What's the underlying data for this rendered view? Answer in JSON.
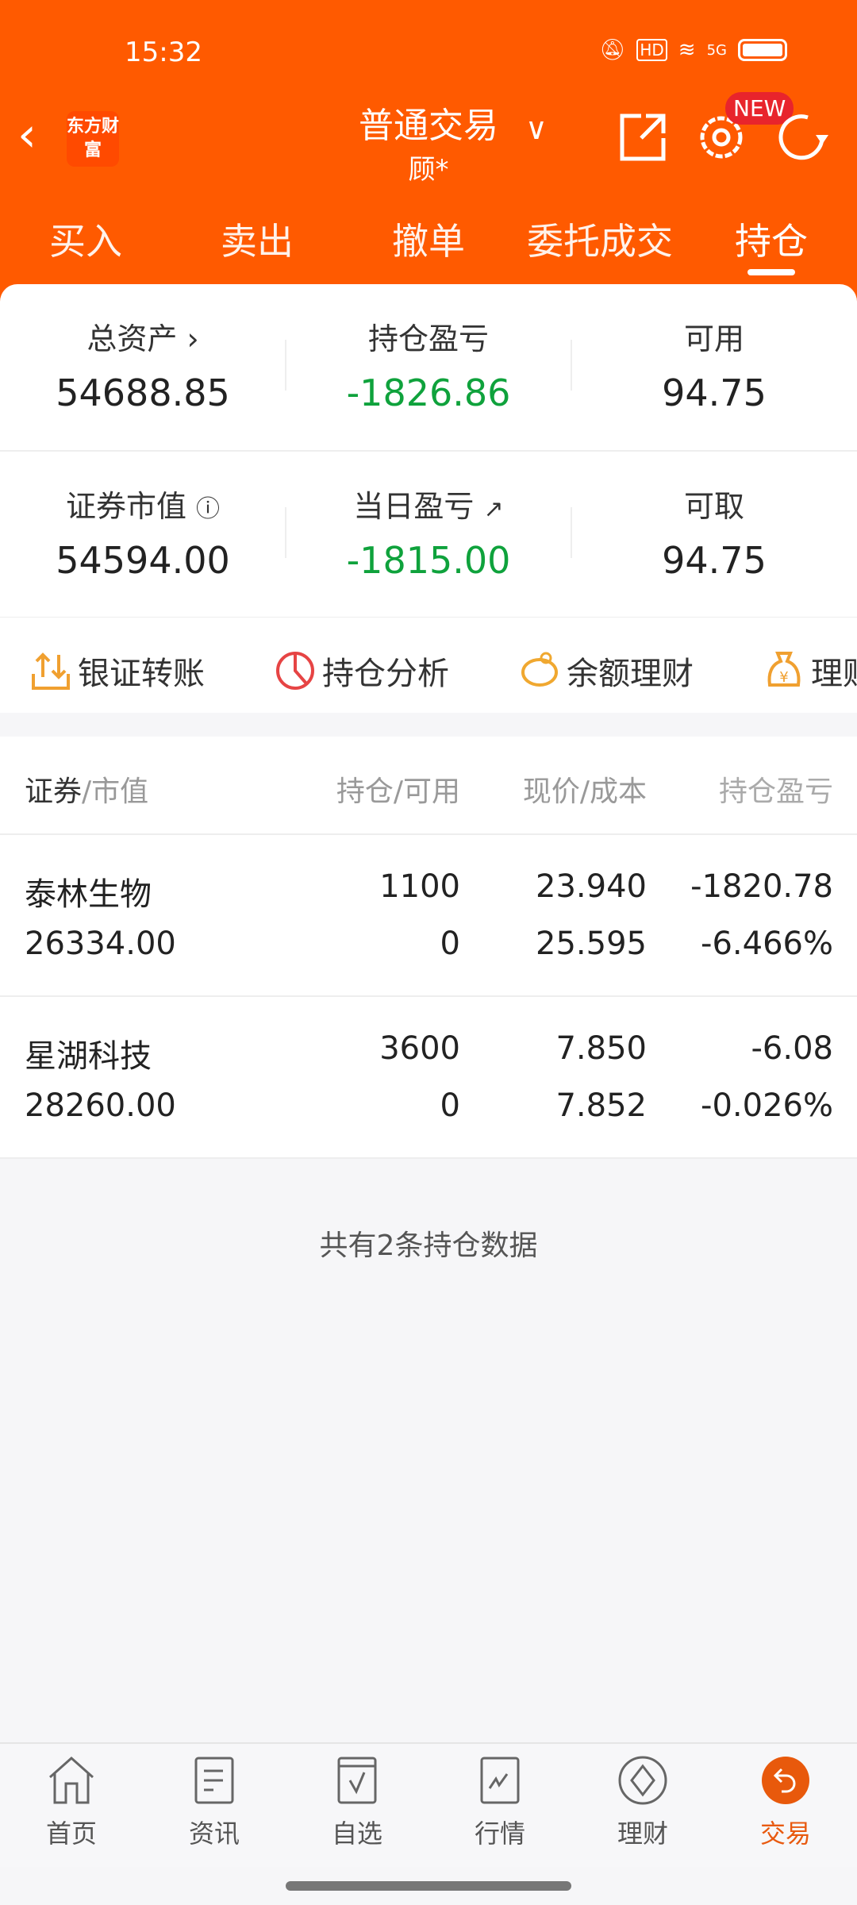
{
  "status_bar": {
    "time": "15:32",
    "network": "5G",
    "hd": "HD"
  },
  "header": {
    "logo": "东方财富",
    "title": "普通交易",
    "subtitle": "顾*",
    "new_badge": "NEW"
  },
  "tabs": [
    {
      "label": "买入"
    },
    {
      "label": "卖出"
    },
    {
      "label": "撤单"
    },
    {
      "label": "委托成交"
    },
    {
      "label": "持仓",
      "active": true
    }
  ],
  "summary": {
    "total_assets": {
      "label": "总资产",
      "value": "54688.85"
    },
    "position_pl": {
      "label": "持仓盈亏",
      "value": "-1826.86"
    },
    "available": {
      "label": "可用",
      "value": "94.75"
    },
    "market_value": {
      "label": "证券市值",
      "value": "54594.00"
    },
    "daily_pl": {
      "label": "当日盈亏",
      "value": "-1815.00"
    },
    "withdrawable": {
      "label": "可取",
      "value": "94.75"
    }
  },
  "quick_links": [
    {
      "label": "银证转账",
      "icon": "transfer-icon"
    },
    {
      "label": "持仓分析",
      "icon": "pie-chart-icon"
    },
    {
      "label": "余额理财",
      "icon": "piggy-bank-icon"
    },
    {
      "label": "理财",
      "icon": "money-bag-icon"
    }
  ],
  "table": {
    "headers": {
      "name": "证券",
      "name_sub": "/市值",
      "qty": "持仓/可用",
      "price": "现价/成本",
      "pl": "持仓盈亏"
    },
    "rows": [
      {
        "name": "泰林生物",
        "market_value": "26334.00",
        "holding": "1100",
        "available": "0",
        "price": "23.940",
        "cost": "25.595",
        "pl": "-1820.78",
        "pl_pct": "-6.466%"
      },
      {
        "name": "星湖科技",
        "market_value": "28260.00",
        "holding": "3600",
        "available": "0",
        "price": "7.850",
        "cost": "7.852",
        "pl": "-6.08",
        "pl_pct": "-0.026%"
      }
    ],
    "footer": "共有2条持仓数据"
  },
  "bottom_nav": [
    {
      "label": "首页"
    },
    {
      "label": "资讯"
    },
    {
      "label": "自选"
    },
    {
      "label": "行情"
    },
    {
      "label": "理财"
    },
    {
      "label": "交易",
      "active": true
    }
  ],
  "colors": {
    "brand": "#ff5a00",
    "loss": "#0fa23c",
    "badge": "#e8242c"
  }
}
